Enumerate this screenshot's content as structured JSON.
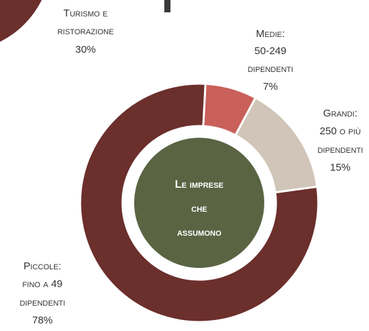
{
  "chart_data": [
    {
      "type": "pie-fragment",
      "categories": [
        [
          "Turismo e",
          "ristorazione"
        ]
      ],
      "values": [
        30
      ],
      "value_labels": [
        "30%"
      ],
      "colors": [
        "#6b2f2c"
      ]
    },
    {
      "type": "donut",
      "center_label": [
        "Le imprese",
        "che",
        "assumono"
      ],
      "center_color": "#5a6443",
      "categories": [
        [
          "Medie:",
          "50-249",
          "dipendenti"
        ],
        [
          "Grandi:",
          "250 o più",
          "dipendenti"
        ],
        [
          "Piccole:",
          "fino a 49",
          "dipendenti"
        ]
      ],
      "values": [
        7,
        15,
        78
      ],
      "value_labels": [
        "7%",
        "15%",
        "78%"
      ],
      "colors": [
        "#c9605a",
        "#d0c5b8",
        "#6b2f2c"
      ]
    }
  ]
}
